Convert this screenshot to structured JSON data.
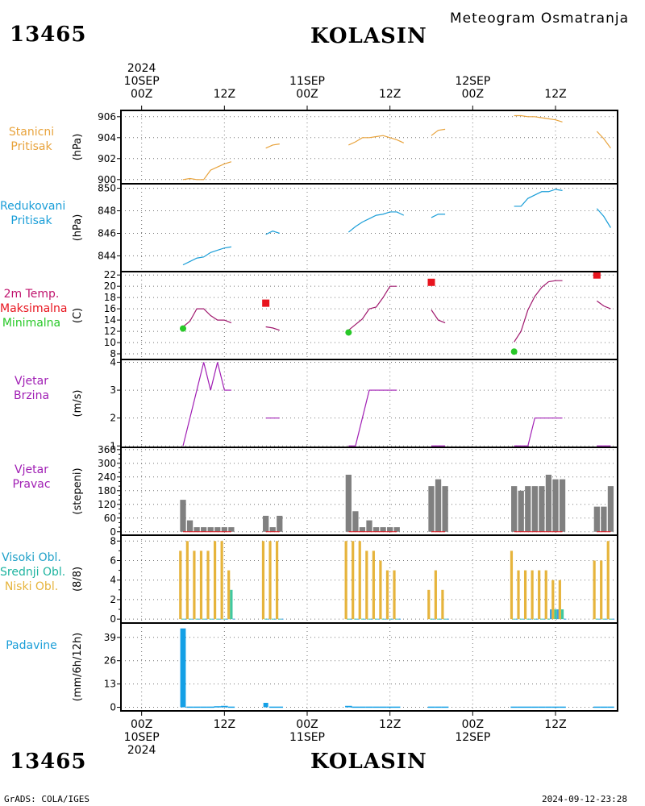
{
  "header": {
    "station_id": "13465",
    "station_name": "KOLASIN",
    "meteogram_title": "Meteogram Osmatranja"
  },
  "footer": {
    "station_id": "13465",
    "station_name": "KOLASIN",
    "credit": "GrADS: COLA/IGES",
    "timestamp": "2024-09-12-23:28"
  },
  "time_axis": {
    "year": "2024",
    "ticks": [
      {
        "hour": 0,
        "hour_label": "00Z",
        "date_label": "10SEP",
        "year_label": "2024"
      },
      {
        "hour": 12,
        "hour_label": "12Z",
        "date_label": "",
        "year_label": ""
      },
      {
        "hour": 24,
        "hour_label": "00Z",
        "date_label": "11SEP",
        "year_label": ""
      },
      {
        "hour": 36,
        "hour_label": "12Z",
        "date_label": "",
        "year_label": ""
      },
      {
        "hour": 48,
        "hour_label": "00Z",
        "date_label": "12SEP",
        "year_label": ""
      },
      {
        "hour": 60,
        "hour_label": "12Z",
        "date_label": "",
        "year_label": ""
      }
    ],
    "range_hours": [
      -3,
      69
    ]
  },
  "colors": {
    "station_pressure": "#e8a33c",
    "reduced_pressure": "#1a9ed8",
    "temperature": "#a0196e",
    "tmax": "#e8141e",
    "tmin": "#28c828",
    "wind": "#a01eb4",
    "bar_gray": "#808080",
    "high_cloud": "#3ca0e6",
    "mid_cloud": "#40c8a0",
    "low_cloud": "#e6b43c",
    "precip": "#14a0e6"
  },
  "panels": [
    {
      "id": "station-pressure",
      "label_lines": [
        "Stanicni",
        "Pritisak"
      ],
      "label_colors": [
        "#e8a33c",
        "#e8a33c"
      ],
      "unit": "(hPa)"
    },
    {
      "id": "reduced-pressure",
      "label_lines": [
        "Redukovani",
        "Pritisak"
      ],
      "label_colors": [
        "#1a9ed8",
        "#1a9ed8"
      ],
      "unit": "(hPa)"
    },
    {
      "id": "temperature",
      "label_lines": [
        "2m Temp.",
        "Maksimalna",
        "Minimalna"
      ],
      "label_colors": [
        "#c0146e",
        "#e8141e",
        "#28c828"
      ],
      "unit": "(C)"
    },
    {
      "id": "wind-speed",
      "label_lines": [
        "Vjetar",
        "Brzina"
      ],
      "label_colors": [
        "#a01eb4",
        "#a01eb4"
      ],
      "unit": "(m/s)"
    },
    {
      "id": "wind-direction",
      "label_lines": [
        "Vjetar",
        "Pravac"
      ],
      "label_colors": [
        "#a01eb4",
        "#a01eb4"
      ],
      "unit": "(stepeni)"
    },
    {
      "id": "clouds",
      "label_lines": [
        "Visoki Obl.",
        "Srednji Obl.",
        "Niski Obl."
      ],
      "label_colors": [
        "#1ea0c8",
        "#1eb4a0",
        "#e6b43c"
      ],
      "unit": "(8/8)"
    },
    {
      "id": "precip",
      "label_lines": [
        "Padavine"
      ],
      "label_colors": [
        "#1a9ed8"
      ],
      "unit": "(mm/6h/12h)"
    }
  ],
  "chart_data": [
    {
      "type": "line",
      "id": "station-pressure",
      "ylabel": "(hPa)",
      "ylim": [
        899.6,
        906.6
      ],
      "yticks": [
        900,
        902,
        904,
        906
      ],
      "grid": true,
      "series": [
        {
          "segments": [
            [
              [
                6,
                900.0
              ],
              [
                7,
                900.1
              ],
              [
                8,
                900.0
              ],
              [
                9,
                900.0
              ],
              [
                10,
                900.9
              ],
              [
                11,
                901.2
              ],
              [
                12,
                901.5
              ],
              [
                13,
                901.7
              ]
            ],
            [
              [
                18,
                903.0
              ],
              [
                19,
                903.3
              ],
              [
                20,
                903.4
              ]
            ],
            [
              [
                30,
                903.3
              ],
              [
                31,
                903.6
              ],
              [
                32,
                904.0
              ],
              [
                33,
                904.0
              ],
              [
                34,
                904.1
              ],
              [
                35,
                904.2
              ],
              [
                36,
                904.0
              ],
              [
                37,
                903.8
              ],
              [
                38,
                903.5
              ]
            ],
            [
              [
                42,
                904.2
              ],
              [
                43,
                904.7
              ],
              [
                44,
                904.8
              ]
            ],
            [
              [
                54,
                906.1
              ],
              [
                55,
                906.1
              ],
              [
                56,
                906.0
              ],
              [
                57,
                906.0
              ],
              [
                58,
                905.9
              ],
              [
                59,
                905.8
              ],
              [
                60,
                905.7
              ],
              [
                61,
                905.5
              ]
            ],
            [
              [
                66,
                904.6
              ],
              [
                67,
                903.9
              ],
              [
                68,
                903.0
              ]
            ]
          ]
        }
      ]
    },
    {
      "type": "line",
      "id": "reduced-pressure",
      "ylabel": "(hPa)",
      "ylim": [
        842.6,
        850.4
      ],
      "yticks": [
        844,
        846,
        848,
        850
      ],
      "grid": true,
      "series": [
        {
          "segments": [
            [
              [
                6,
                843.2
              ],
              [
                7,
                843.5
              ],
              [
                8,
                843.8
              ],
              [
                9,
                843.9
              ],
              [
                10,
                844.3
              ],
              [
                11,
                844.5
              ],
              [
                12,
                844.7
              ],
              [
                13,
                844.8
              ]
            ],
            [
              [
                18,
                845.9
              ],
              [
                19,
                846.2
              ],
              [
                20,
                846.0
              ]
            ],
            [
              [
                30,
                846.1
              ],
              [
                31,
                846.6
              ],
              [
                32,
                847.0
              ],
              [
                33,
                847.3
              ],
              [
                34,
                847.6
              ],
              [
                35,
                847.7
              ],
              [
                36,
                847.9
              ],
              [
                37,
                847.9
              ],
              [
                38,
                847.6
              ]
            ],
            [
              [
                42,
                847.4
              ],
              [
                43,
                847.7
              ],
              [
                44,
                847.7
              ]
            ],
            [
              [
                54,
                848.4
              ],
              [
                55,
                848.4
              ],
              [
                56,
                849.1
              ],
              [
                57,
                849.4
              ],
              [
                58,
                849.7
              ],
              [
                59,
                849.7
              ],
              [
                60,
                849.9
              ],
              [
                61,
                849.8
              ]
            ],
            [
              [
                66,
                848.2
              ],
              [
                67,
                847.5
              ],
              [
                68,
                846.5
              ]
            ]
          ]
        }
      ]
    },
    {
      "type": "line",
      "id": "temperature",
      "ylabel": "(C)",
      "ylim": [
        7.0,
        22.6
      ],
      "yticks": [
        8,
        10,
        12,
        14,
        16,
        18,
        20,
        22
      ],
      "grid": true,
      "series": [
        {
          "name": "2m Temp.",
          "segments": [
            [
              [
                6,
                12.8
              ],
              [
                7,
                13.8
              ],
              [
                8,
                16.0
              ],
              [
                9,
                16.0
              ],
              [
                10,
                14.8
              ],
              [
                11,
                14.0
              ],
              [
                12,
                14.0
              ],
              [
                13,
                13.5
              ]
            ],
            [
              [
                18,
                12.8
              ],
              [
                19,
                12.6
              ],
              [
                20,
                12.2
              ]
            ],
            [
              [
                30,
                12.2
              ],
              [
                31,
                13.2
              ],
              [
                32,
                14.2
              ],
              [
                33,
                16.0
              ],
              [
                34,
                16.3
              ],
              [
                35,
                18.0
              ],
              [
                36,
                20.0
              ],
              [
                37,
                20.0
              ]
            ],
            [
              [
                42,
                15.8
              ],
              [
                43,
                14.0
              ],
              [
                44,
                13.5
              ]
            ],
            [
              [
                54,
                10.1
              ],
              [
                55,
                12.0
              ],
              [
                56,
                15.8
              ],
              [
                57,
                18.2
              ],
              [
                58,
                19.8
              ],
              [
                59,
                20.8
              ],
              [
                60,
                21.0
              ],
              [
                61,
                21.0
              ]
            ],
            [
              [
                66,
                17.4
              ],
              [
                67,
                16.5
              ],
              [
                68,
                16.0
              ]
            ]
          ]
        },
        {
          "name": "Maksimalna",
          "points": [
            [
              18,
              17.0
            ],
            [
              42,
              20.7
            ],
            [
              66,
              22.0
            ]
          ]
        },
        {
          "name": "Minimalna",
          "points": [
            [
              6,
              12.5
            ],
            [
              30,
              11.8
            ],
            [
              54,
              8.4
            ]
          ]
        }
      ]
    },
    {
      "type": "line",
      "id": "wind-speed",
      "ylabel": "(m/s)",
      "ylim": [
        0.95,
        4.1
      ],
      "yticks": [
        1,
        2,
        3,
        4
      ],
      "grid": true,
      "series": [
        {
          "segments": [
            [
              [
                6,
                1
              ],
              [
                9,
                4
              ],
              [
                10,
                3
              ],
              [
                11,
                4
              ],
              [
                12,
                3
              ],
              [
                13,
                3
              ]
            ],
            [
              [
                18,
                2
              ],
              [
                20,
                2
              ]
            ],
            [
              [
                30,
                1
              ],
              [
                31,
                1
              ],
              [
                33,
                3
              ],
              [
                37,
                3
              ]
            ],
            [
              [
                42,
                1
              ],
              [
                44,
                1
              ]
            ],
            [
              [
                54,
                1
              ],
              [
                56,
                1
              ],
              [
                57,
                2
              ],
              [
                61,
                2
              ]
            ],
            [
              [
                66,
                1
              ],
              [
                68,
                1
              ]
            ]
          ]
        }
      ]
    },
    {
      "type": "bar",
      "id": "wind-direction",
      "ylabel": "(stepeni)",
      "ylim": [
        -15,
        370
      ],
      "yticks": [
        0,
        60,
        120,
        180,
        240,
        300,
        360
      ],
      "ytick_labels": [
        "0",
        "60",
        "120",
        "180",
        "240",
        "300",
        "360"
      ],
      "extra_ticks": [
        20,
        40,
        80,
        100,
        140,
        160,
        200,
        220,
        260,
        280,
        320,
        340
      ],
      "grid": true,
      "x": [
        6,
        7,
        8,
        9,
        10,
        11,
        12,
        13,
        18,
        19,
        20,
        30,
        31,
        32,
        33,
        34,
        35,
        36,
        37,
        42,
        43,
        44,
        54,
        55,
        56,
        57,
        58,
        59,
        60,
        61,
        66,
        67,
        68
      ],
      "values": [
        140,
        50,
        20,
        20,
        20,
        20,
        20,
        20,
        70,
        20,
        70,
        250,
        90,
        20,
        50,
        20,
        20,
        20,
        20,
        200,
        230,
        200,
        200,
        180,
        200,
        200,
        200,
        250,
        230,
        230,
        110,
        110,
        200
      ]
    },
    {
      "type": "bar",
      "id": "clouds",
      "ylabel": "(8/8)",
      "ylim": [
        -0.4,
        8.6
      ],
      "yticks": [
        0,
        2,
        4,
        6,
        8
      ],
      "extra_ticks": [
        1,
        3,
        5,
        7
      ],
      "grid": true,
      "x": [
        6,
        7,
        8,
        9,
        10,
        11,
        12,
        13,
        18,
        19,
        20,
        30,
        31,
        32,
        33,
        34,
        35,
        36,
        37,
        42,
        43,
        44,
        54,
        55,
        56,
        57,
        58,
        59,
        60,
        61,
        66,
        67,
        68
      ],
      "series": [
        {
          "name": "Niski Obl.",
          "values": [
            7,
            8,
            7,
            7,
            7,
            8,
            8,
            5,
            8,
            8,
            8,
            8,
            8,
            8,
            7,
            7,
            6,
            5,
            5,
            3,
            5,
            3,
            7,
            5,
            5,
            5,
            5,
            5,
            4,
            4,
            6,
            6,
            8
          ]
        },
        {
          "name": "Srednji Obl.",
          "values": [
            0,
            0,
            0,
            0,
            0,
            0,
            0,
            3,
            0,
            0,
            0,
            0,
            0,
            0,
            0,
            0,
            0,
            0,
            0,
            0,
            0,
            0,
            0,
            0,
            0,
            0,
            0,
            0,
            1,
            1,
            0,
            0,
            0
          ]
        },
        {
          "name": "Visoki Obl.",
          "values": [
            0,
            0,
            0,
            0,
            0,
            0,
            0,
            0,
            0,
            0,
            0,
            0,
            0,
            0,
            0,
            0,
            0,
            0,
            0,
            0,
            0,
            0,
            0,
            0,
            0,
            0,
            0,
            1,
            1,
            0,
            0,
            0,
            0
          ]
        }
      ]
    },
    {
      "type": "bar",
      "id": "precip",
      "ylabel": "(mm/6h/12h)",
      "ylim": [
        -2,
        47
      ],
      "yticks": [
        0,
        13,
        26,
        39
      ],
      "grid": true,
      "x": [
        6,
        7,
        8,
        9,
        10,
        11,
        12,
        13,
        18,
        19,
        20,
        30,
        31,
        32,
        33,
        34,
        35,
        36,
        37,
        42,
        43,
        44,
        54,
        55,
        56,
        57,
        58,
        59,
        60,
        61,
        66,
        67,
        68
      ],
      "values": [
        44,
        0.4,
        0.4,
        0.4,
        0.4,
        0.6,
        0.8,
        0.4,
        2.5,
        0.4,
        0.4,
        0.8,
        0.4,
        0.4,
        0.4,
        0.4,
        0.4,
        0.4,
        0.4,
        0.4,
        0.4,
        0.4,
        0.4,
        0.4,
        0.4,
        0.4,
        0.4,
        0.4,
        0.4,
        0.4,
        0.4,
        0.4,
        0.4
      ]
    }
  ]
}
